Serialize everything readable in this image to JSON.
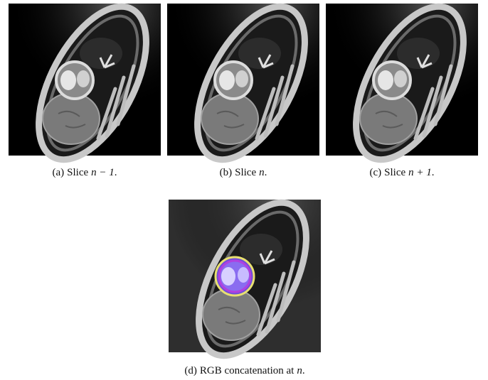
{
  "figure": {
    "subfigures": [
      {
        "label": "(a)",
        "text": "Slice",
        "math": "n − 1",
        "end": "."
      },
      {
        "label": "(b)",
        "text": "Slice",
        "math": "n",
        "end": "."
      },
      {
        "label": "(c)",
        "text": "Slice",
        "math": "n + 1",
        "end": "."
      },
      {
        "label": "(d)",
        "text": "RGB concatenation at",
        "math": "n",
        "end": "."
      }
    ]
  }
}
